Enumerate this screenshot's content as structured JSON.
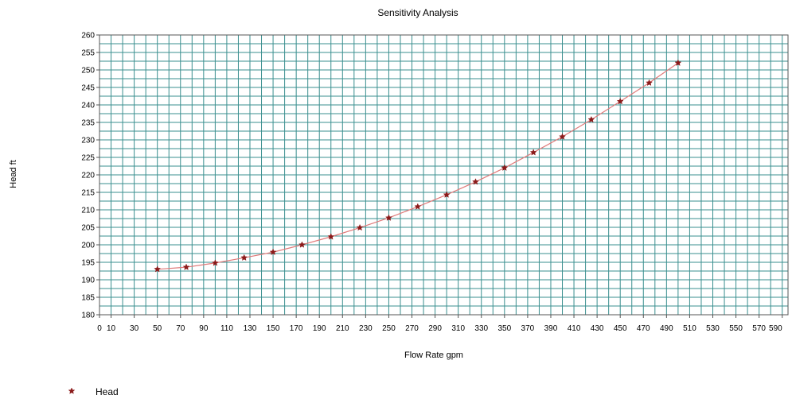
{
  "chart_data": {
    "type": "line",
    "title": "Sensitivity Analysis",
    "xlabel": "Flow Rate  gpm",
    "ylabel": "Head  ft",
    "xlim": [
      0,
      595
    ],
    "ylim": [
      180,
      260
    ],
    "x_ticks": [
      "0",
      "10",
      "30",
      "50",
      "70",
      "90",
      "110",
      "130",
      "150",
      "170",
      "190",
      "210",
      "230",
      "250",
      "270",
      "290",
      "310",
      "330",
      "350",
      "370",
      "390",
      "410",
      "430",
      "450",
      "470",
      "490",
      "510",
      "530",
      "550",
      "570",
      "590"
    ],
    "y_ticks": [
      "180",
      "185",
      "190",
      "195",
      "200",
      "205",
      "210",
      "215",
      "220",
      "225",
      "230",
      "235",
      "240",
      "245",
      "250",
      "255",
      "260"
    ],
    "grid": true,
    "legend_position": "bottom-left",
    "series": [
      {
        "name": "Head",
        "color": "#8b1a1a",
        "line_color": "#e07a7a",
        "marker": "star",
        "x": [
          50,
          75,
          100,
          125,
          150,
          175,
          200,
          225,
          250,
          275,
          300,
          325,
          350,
          375,
          400,
          425,
          450,
          475,
          500
        ],
        "y": [
          193.0,
          193.6,
          194.8,
          196.3,
          197.9,
          200.0,
          202.3,
          204.9,
          207.7,
          210.9,
          214.3,
          218.0,
          222.0,
          226.4,
          230.9,
          235.8,
          241.0,
          246.3,
          252.0
        ]
      }
    ]
  }
}
